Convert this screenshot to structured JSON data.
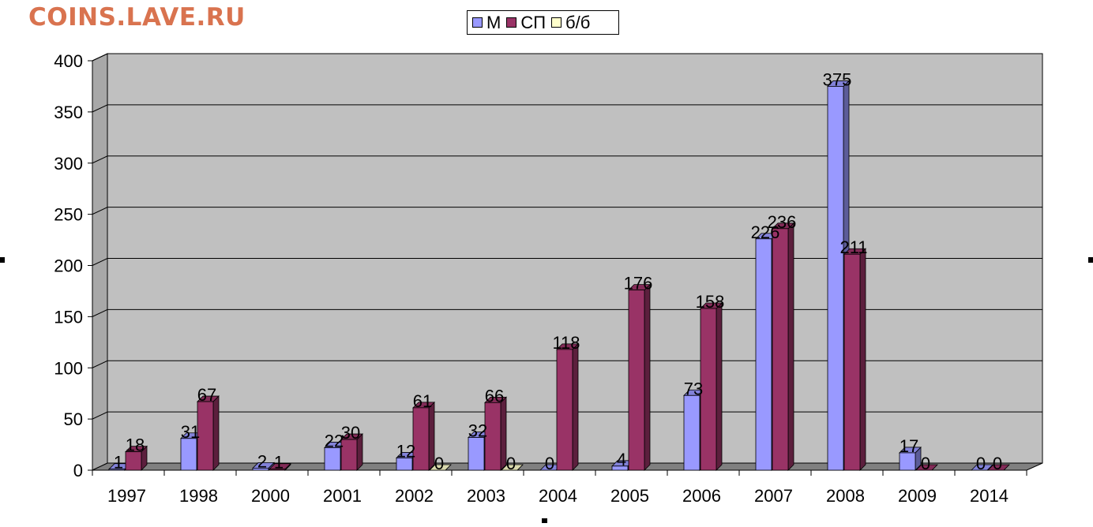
{
  "watermark": "COINS.LAVE.RU",
  "colors": {
    "series_m": "#9999ff",
    "series_sp": "#993366",
    "series_bb": "#ffffcc",
    "back_wall": "#c0c0c0",
    "floor": "#808080"
  },
  "chart_data": {
    "type": "bar",
    "categories": [
      "1997",
      "1998",
      "2000",
      "2001",
      "2002",
      "2003",
      "2004",
      "2005",
      "2006",
      "2007",
      "2008",
      "2009",
      "2014"
    ],
    "series": [
      {
        "name": "М",
        "values": [
          1,
          31,
          2,
          22,
          12,
          32,
          0,
          4,
          73,
          226,
          375,
          17,
          0
        ]
      },
      {
        "name": "СП",
        "values": [
          18,
          67,
          1,
          30,
          61,
          66,
          118,
          176,
          158,
          236,
          211,
          0,
          0
        ]
      },
      {
        "name": "б/б",
        "values": [
          null,
          null,
          null,
          null,
          0,
          0,
          null,
          null,
          null,
          null,
          null,
          null,
          null
        ]
      }
    ],
    "yticks": [
      "0",
      "50",
      "100",
      "150",
      "200",
      "250",
      "300",
      "350",
      "400"
    ],
    "ylim": [
      0,
      400
    ],
    "grid": true,
    "legend_position": "top-center",
    "style": "3d-clustered-column"
  }
}
